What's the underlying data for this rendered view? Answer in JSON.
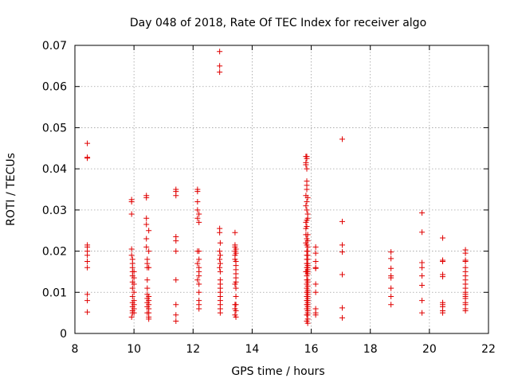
{
  "chart_data": {
    "type": "scatter",
    "title": "Day 048 of 2018, Rate Of TEC Index for receiver algo",
    "xlabel": "GPS time / hours",
    "ylabel": "ROTI / TECUs",
    "xlim": [
      8,
      22
    ],
    "ylim": [
      0,
      0.07
    ],
    "xticks": [
      8,
      10,
      12,
      14,
      16,
      18,
      20,
      22
    ],
    "xtick_labels": [
      "8",
      "10",
      "12",
      "14",
      "16",
      "18",
      "20",
      "22"
    ],
    "yticks": [
      0,
      0.01,
      0.02,
      0.03,
      0.04,
      0.05,
      0.06,
      0.07
    ],
    "ytick_labels": [
      "0",
      "0.01",
      "0.02",
      "0.03",
      "0.04",
      "0.05",
      "0.06",
      "0.07"
    ],
    "grid": true,
    "marker": "+",
    "marker_color": "#e00000",
    "series": [
      {
        "name": "ROTI",
        "x": [
          8.42,
          8.42,
          8.42,
          8.42,
          8.42,
          8.42,
          8.42,
          8.42,
          8.42,
          8.42,
          8.42,
          8.42,
          9.92,
          9.92,
          9.92,
          9.92,
          9.92,
          9.92,
          9.95,
          9.95,
          9.95,
          9.95,
          9.95,
          9.95,
          9.95,
          9.95,
          9.95,
          9.95,
          9.95,
          9.95,
          10.0,
          10.0,
          10.0,
          10.0,
          10.0,
          10.0,
          10.0,
          10.0,
          10.42,
          10.42,
          10.42,
          10.42,
          10.42,
          10.42,
          10.45,
          10.45,
          10.45,
          10.45,
          10.45,
          10.45,
          10.45,
          10.45,
          10.45,
          10.45,
          10.5,
          10.5,
          10.5,
          10.5,
          10.5,
          10.5,
          10.5,
          10.5,
          10.5,
          10.5,
          11.42,
          11.42,
          11.42,
          11.42,
          11.42,
          11.42,
          11.42,
          11.42,
          11.42,
          11.42,
          12.15,
          12.15,
          12.15,
          12.15,
          12.15,
          12.15,
          12.15,
          12.15,
          12.2,
          12.2,
          12.2,
          12.2,
          12.2,
          12.2,
          12.2,
          12.2,
          12.2,
          12.2,
          12.2,
          12.2,
          12.9,
          12.9,
          12.9,
          12.9,
          12.9,
          12.9,
          12.9,
          12.9,
          12.92,
          12.92,
          12.92,
          12.92,
          12.92,
          12.92,
          12.92,
          12.92,
          12.92,
          12.92,
          12.92,
          12.92,
          12.92,
          13.42,
          13.42,
          13.42,
          13.42,
          13.42,
          13.42,
          13.42,
          13.42,
          13.42,
          13.42,
          13.45,
          13.45,
          13.45,
          13.45,
          13.45,
          13.45,
          13.45,
          13.45,
          13.45,
          13.45,
          13.45,
          13.45,
          13.45,
          15.82,
          15.82,
          15.82,
          15.82,
          15.82,
          15.82,
          15.82,
          15.82,
          15.82,
          15.82,
          15.85,
          15.85,
          15.85,
          15.85,
          15.85,
          15.85,
          15.85,
          15.85,
          15.85,
          15.85,
          15.85,
          15.85,
          15.85,
          15.85,
          15.85,
          15.85,
          15.85,
          15.85,
          15.85,
          15.85,
          15.85,
          15.85,
          15.85,
          15.85,
          15.85,
          15.85,
          15.85,
          15.85,
          15.85,
          15.88,
          15.88,
          15.88,
          15.88,
          15.88,
          15.88,
          15.88,
          15.88,
          15.88,
          15.88,
          15.88,
          15.88,
          15.88,
          15.88,
          15.88,
          15.88,
          15.88,
          15.88,
          15.88,
          15.88,
          15.88,
          15.88,
          15.88,
          15.88,
          15.88,
          15.88,
          15.88,
          15.88,
          15.88,
          15.88,
          15.88,
          15.88,
          15.88,
          16.15,
          16.15,
          16.15,
          16.15,
          16.15,
          16.15,
          16.15,
          16.15,
          16.15,
          16.15,
          17.05,
          17.05,
          17.05,
          17.05,
          17.05,
          17.05,
          17.05,
          18.7,
          18.7,
          18.7,
          18.7,
          18.7,
          18.7,
          18.7,
          18.7,
          19.75,
          19.75,
          19.75,
          19.75,
          19.75,
          19.75,
          19.75,
          19.75,
          20.45,
          20.45,
          20.45,
          20.45,
          20.45,
          20.45,
          20.45,
          20.45,
          20.45,
          20.45,
          21.22,
          21.22,
          21.22,
          21.22,
          21.22,
          21.22,
          21.22,
          21.22,
          21.22,
          21.22,
          21.22,
          21.22,
          21.22,
          21.22,
          21.22,
          21.22,
          21.22,
          21.22
        ],
        "y": [
          0.0462,
          0.0428,
          0.0426,
          0.0215,
          0.021,
          0.02,
          0.019,
          0.0175,
          0.016,
          0.0095,
          0.008,
          0.0052,
          0.0325,
          0.032,
          0.029,
          0.0205,
          0.019,
          0.004,
          0.018,
          0.017,
          0.016,
          0.015,
          0.014,
          0.0125,
          0.011,
          0.009,
          0.0075,
          0.0065,
          0.0055,
          0.005,
          0.015,
          0.0135,
          0.012,
          0.01,
          0.008,
          0.007,
          0.006,
          0.005,
          0.0335,
          0.033,
          0.028,
          0.0265,
          0.023,
          0.021,
          0.018,
          0.017,
          0.016,
          0.013,
          0.011,
          0.0095,
          0.0085,
          0.0075,
          0.0065,
          0.005,
          0.025,
          0.02,
          0.016,
          0.009,
          0.008,
          0.007,
          0.006,
          0.005,
          0.004,
          0.0035,
          0.035,
          0.0345,
          0.0335,
          0.0235,
          0.0225,
          0.02,
          0.013,
          0.007,
          0.0045,
          0.003,
          0.035,
          0.0345,
          0.032,
          0.03,
          0.028,
          0.02,
          0.017,
          0.013,
          0.029,
          0.027,
          0.02,
          0.018,
          0.016,
          0.015,
          0.014,
          0.012,
          0.01,
          0.008,
          0.007,
          0.006,
          0.0685,
          0.065,
          0.0635,
          0.0255,
          0.0245,
          0.02,
          0.018,
          0.016,
          0.022,
          0.019,
          0.017,
          0.015,
          0.013,
          0.012,
          0.011,
          0.01,
          0.009,
          0.008,
          0.007,
          0.006,
          0.005,
          0.0245,
          0.0215,
          0.021,
          0.02,
          0.019,
          0.018,
          0.012,
          0.007,
          0.006,
          0.0045,
          0.0205,
          0.0195,
          0.0175,
          0.0165,
          0.0155,
          0.0145,
          0.0135,
          0.0125,
          0.011,
          0.009,
          0.007,
          0.0055,
          0.004,
          0.043,
          0.0415,
          0.041,
          0.0335,
          0.031,
          0.027,
          0.0255,
          0.024,
          0.022,
          0.015,
          0.043,
          0.0425,
          0.04,
          0.037,
          0.036,
          0.035,
          0.032,
          0.03,
          0.0275,
          0.026,
          0.023,
          0.0215,
          0.02,
          0.019,
          0.018,
          0.017,
          0.016,
          0.015,
          0.014,
          0.013,
          0.012,
          0.011,
          0.01,
          0.009,
          0.008,
          0.007,
          0.006,
          0.0045,
          0.003,
          0.033,
          0.029,
          0.028,
          0.024,
          0.0225,
          0.021,
          0.02,
          0.019,
          0.018,
          0.017,
          0.0165,
          0.016,
          0.0155,
          0.015,
          0.0145,
          0.013,
          0.0125,
          0.0115,
          0.0105,
          0.01,
          0.0095,
          0.009,
          0.0085,
          0.008,
          0.0075,
          0.007,
          0.0065,
          0.006,
          0.0055,
          0.005,
          0.0045,
          0.0035,
          0.0025,
          0.021,
          0.0195,
          0.0175,
          0.016,
          0.0158,
          0.012,
          0.01,
          0.006,
          0.005,
          0.0045,
          0.0472,
          0.0272,
          0.0215,
          0.0198,
          0.0143,
          0.0062,
          0.0038,
          0.0198,
          0.0182,
          0.0158,
          0.014,
          0.0135,
          0.011,
          0.009,
          0.007,
          0.0293,
          0.0246,
          0.0172,
          0.016,
          0.014,
          0.0117,
          0.008,
          0.005,
          0.0232,
          0.0178,
          0.0175,
          0.0143,
          0.0138,
          0.0075,
          0.007,
          0.0065,
          0.0055,
          0.005,
          0.0203,
          0.0195,
          0.0178,
          0.0175,
          0.016,
          0.015,
          0.014,
          0.013,
          0.012,
          0.011,
          0.01,
          0.0095,
          0.009,
          0.0085,
          0.0075,
          0.007,
          0.006,
          0.0055
        ]
      }
    ]
  }
}
